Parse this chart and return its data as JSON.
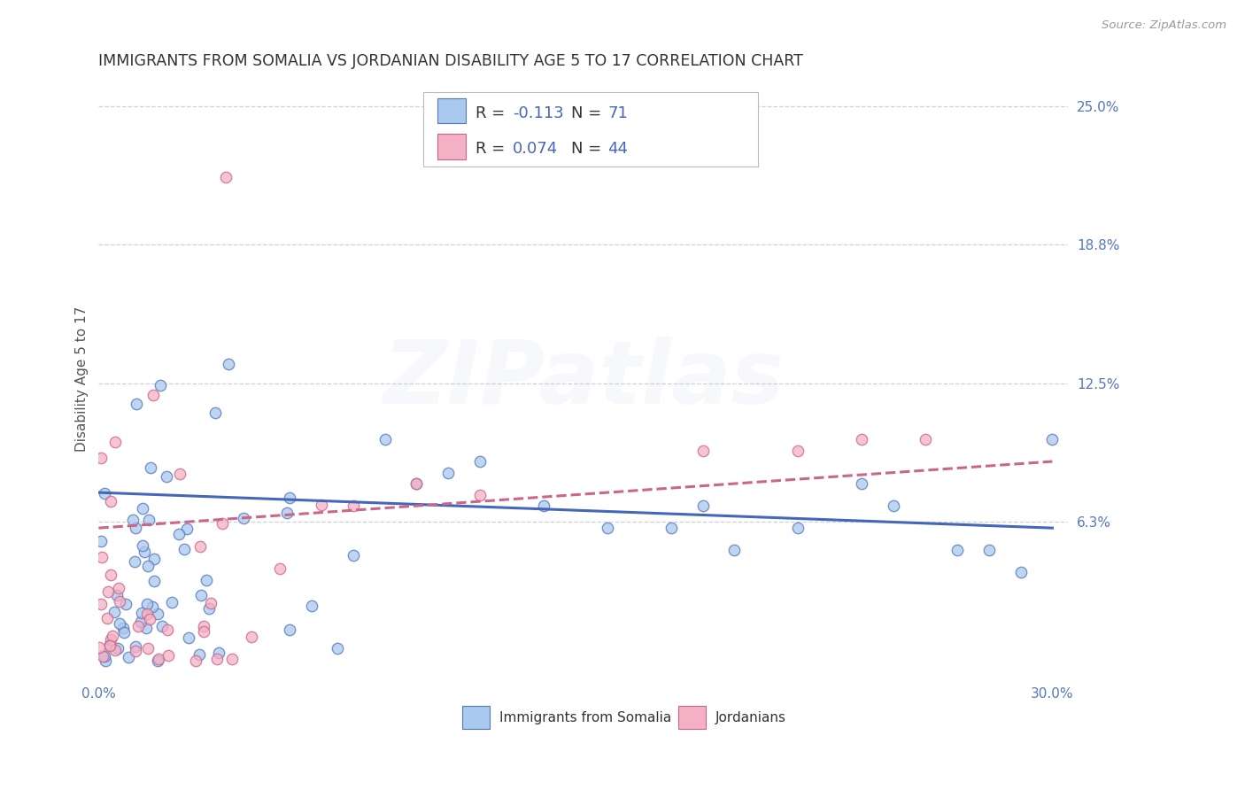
{
  "title": "IMMIGRANTS FROM SOMALIA VS JORDANIAN DISABILITY AGE 5 TO 17 CORRELATION CHART",
  "source": "Source: ZipAtlas.com",
  "ylabel": "Disability Age 5 to 17",
  "xlim": [
    0.0,
    0.305
  ],
  "ylim": [
    -0.008,
    0.262
  ],
  "ytick_vals": [
    0.063,
    0.125,
    0.188,
    0.25
  ],
  "ytick_labels": [
    "6.3%",
    "12.5%",
    "18.8%",
    "25.0%"
  ],
  "xtick_vals": [
    0.0,
    0.3
  ],
  "xtick_labels": [
    "0.0%",
    "30.0%"
  ],
  "grid_color": "#d0d0d0",
  "background_color": "#ffffff",
  "watermark_text": "ZIPatlas",
  "R1": "-0.113",
  "N1": "71",
  "R2": "0.074",
  "N2": "44",
  "somalia_fill": "#aac9ee",
  "somalia_edge": "#5577bb",
  "jordan_fill": "#f4b0c4",
  "jordan_edge": "#cc6688",
  "somalia_line_color": "#4466bb",
  "jordan_line_color": "#cc6688",
  "title_color": "#333333",
  "title_fontsize": 12.5,
  "axis_label_color": "#555555",
  "tick_color": "#5577bb",
  "source_color": "#999999",
  "stat_color": "#4466bb",
  "label_fontsize": 11
}
